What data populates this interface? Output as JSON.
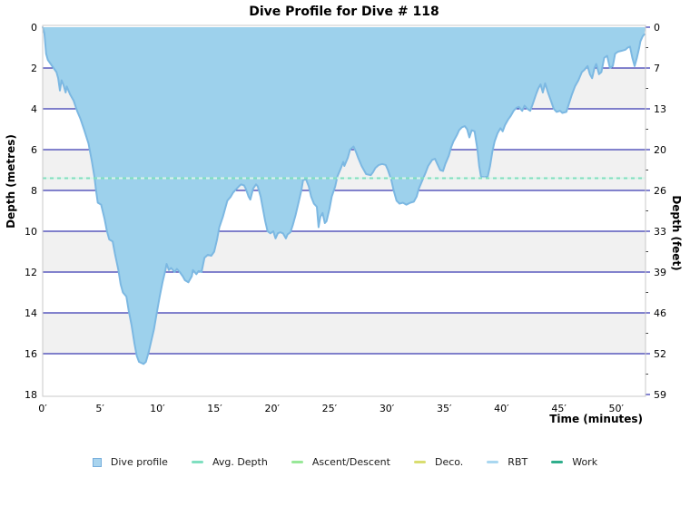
{
  "title": "Dive Profile for Dive # 118",
  "axes": {
    "x_label": "Time (minutes)",
    "y_left_label": "Depth (metres)",
    "y_right_label": "Depth (feet)",
    "x_ticks": [
      "0′",
      "5′",
      "10′",
      "15′",
      "20′",
      "25′",
      "30′",
      "35′",
      "40′",
      "45′",
      "50′"
    ],
    "x_tick_values": [
      0,
      5,
      10,
      15,
      20,
      25,
      30,
      35,
      40,
      45,
      50
    ],
    "y_left_ticks": [
      "0",
      "2",
      "4",
      "6",
      "8",
      "10",
      "12",
      "14",
      "16",
      "18"
    ],
    "y_left_values": [
      0,
      2,
      4,
      6,
      8,
      10,
      12,
      14,
      16,
      18
    ],
    "y_right_ticks": [
      "0",
      "7",
      "13",
      "20",
      "26",
      "33",
      "39",
      "46",
      "52",
      "59"
    ]
  },
  "colors": {
    "profile_fill": "#9DD1EC",
    "profile_stroke": "#7CB8E2",
    "grid_major": "#0909A0",
    "minor_tick": "#444444",
    "band_alt": "#F1F1F1",
    "band_main": "#FFFFFF",
    "plot_border": "#C9C9C9",
    "avg_line_bright": "#7EE0BE",
    "avg_line_pale": "#D8F5E9",
    "text": "#000000"
  },
  "legend": {
    "position": "bottom",
    "items": [
      {
        "label": "Dive profile",
        "marker": "square",
        "color": "#A9D4EE",
        "border_color": "#77AEDC"
      },
      {
        "label": "Avg. Depth",
        "marker": "line",
        "color": "#7FDFC0"
      },
      {
        "label": "Ascent/Descent",
        "marker": "line",
        "color": "#98E898"
      },
      {
        "label": "Deco.",
        "marker": "line",
        "color": "#D9DD70"
      },
      {
        "label": "RBT",
        "marker": "line",
        "color": "#A9D7F0"
      },
      {
        "label": "Work",
        "marker": "line",
        "color": "#2FAE8C"
      }
    ]
  },
  "chart_data": {
    "type": "area",
    "title": "Dive Profile for Dive # 118",
    "xlabel": "Time (minutes)",
    "ylabel_left": "Depth (metres)",
    "ylabel_right": "Depth (feet)",
    "xlim": [
      0,
      52.55
    ],
    "ylim_metres": [
      0,
      18
    ],
    "ylim_feet": [
      0,
      59
    ],
    "y_inverted": true,
    "grid": true,
    "legend_position": "bottom",
    "avg_depth_m": 7.4,
    "max_depth_m": 16.5,
    "duration_min": 52.5,
    "series": [
      {
        "name": "Dive profile",
        "points": [
          [
            0,
            0
          ],
          [
            0.15,
            0.3
          ],
          [
            0.3,
            1.3
          ],
          [
            0.45,
            1.6
          ],
          [
            0.7,
            1.8
          ],
          [
            0.95,
            2.0
          ],
          [
            1.2,
            2.2
          ],
          [
            1.35,
            2.5
          ],
          [
            1.5,
            3.1
          ],
          [
            1.65,
            2.6
          ],
          [
            1.8,
            2.8
          ],
          [
            2.0,
            3.2
          ],
          [
            2.1,
            2.9
          ],
          [
            2.4,
            3.3
          ],
          [
            2.7,
            3.6
          ],
          [
            3.0,
            4.1
          ],
          [
            3.3,
            4.5
          ],
          [
            3.6,
            5.0
          ],
          [
            4.0,
            5.7
          ],
          [
            4.3,
            6.6
          ],
          [
            4.5,
            7.3
          ],
          [
            4.65,
            8.0
          ],
          [
            4.8,
            8.6
          ],
          [
            5.1,
            8.7
          ],
          [
            5.4,
            9.4
          ],
          [
            5.6,
            10.0
          ],
          [
            5.8,
            10.4
          ],
          [
            6.1,
            10.5
          ],
          [
            6.3,
            11.1
          ],
          [
            6.6,
            11.9
          ],
          [
            6.8,
            12.6
          ],
          [
            7.0,
            13.0
          ],
          [
            7.3,
            13.2
          ],
          [
            7.5,
            13.9
          ],
          [
            7.75,
            14.6
          ],
          [
            8.0,
            15.5
          ],
          [
            8.2,
            16.1
          ],
          [
            8.4,
            16.4
          ],
          [
            8.8,
            16.5
          ],
          [
            9.0,
            16.4
          ],
          [
            9.25,
            15.9
          ],
          [
            9.5,
            15.3
          ],
          [
            9.7,
            14.8
          ],
          [
            9.95,
            14.0
          ],
          [
            10.2,
            13.2
          ],
          [
            10.45,
            12.5
          ],
          [
            10.7,
            11.9
          ],
          [
            10.8,
            11.6
          ],
          [
            11.0,
            11.9
          ],
          [
            11.2,
            11.8
          ],
          [
            11.5,
            12.0
          ],
          [
            11.7,
            11.85
          ],
          [
            11.95,
            12.0
          ],
          [
            12.2,
            12.2
          ],
          [
            12.4,
            12.4
          ],
          [
            12.7,
            12.5
          ],
          [
            13.0,
            12.2
          ],
          [
            13.1,
            11.9
          ],
          [
            13.4,
            12.1
          ],
          [
            13.6,
            11.95
          ],
          [
            13.85,
            12.0
          ],
          [
            14.1,
            11.3
          ],
          [
            14.4,
            11.15
          ],
          [
            14.7,
            11.2
          ],
          [
            14.95,
            11.0
          ],
          [
            15.2,
            10.4
          ],
          [
            15.4,
            9.8
          ],
          [
            15.7,
            9.3
          ],
          [
            15.9,
            8.9
          ],
          [
            16.1,
            8.5
          ],
          [
            16.4,
            8.3
          ],
          [
            16.6,
            8.1
          ],
          [
            16.85,
            7.95
          ],
          [
            17.1,
            7.8
          ],
          [
            17.3,
            7.7
          ],
          [
            17.55,
            7.75
          ],
          [
            17.7,
            7.9
          ],
          [
            17.95,
            8.3
          ],
          [
            18.1,
            8.45
          ],
          [
            18.35,
            7.9
          ],
          [
            18.6,
            7.7
          ],
          [
            18.75,
            7.8
          ],
          [
            19.0,
            8.3
          ],
          [
            19.2,
            8.9
          ],
          [
            19.4,
            9.5
          ],
          [
            19.6,
            10.0
          ],
          [
            19.85,
            10.1
          ],
          [
            20.1,
            10.0
          ],
          [
            20.3,
            10.35
          ],
          [
            20.5,
            10.1
          ],
          [
            20.7,
            10.05
          ],
          [
            20.95,
            10.1
          ],
          [
            21.2,
            10.35
          ],
          [
            21.35,
            10.15
          ],
          [
            21.6,
            10.05
          ],
          [
            21.8,
            9.7
          ],
          [
            22.05,
            9.2
          ],
          [
            22.3,
            8.6
          ],
          [
            22.55,
            8.0
          ],
          [
            22.7,
            7.5
          ],
          [
            22.95,
            7.45
          ],
          [
            23.2,
            7.8
          ],
          [
            23.4,
            8.3
          ],
          [
            23.65,
            8.65
          ],
          [
            23.9,
            8.8
          ],
          [
            24.05,
            9.8
          ],
          [
            24.2,
            9.3
          ],
          [
            24.4,
            9.1
          ],
          [
            24.6,
            9.6
          ],
          [
            24.75,
            9.5
          ],
          [
            25.0,
            8.9
          ],
          [
            25.2,
            8.3
          ],
          [
            25.5,
            7.8
          ],
          [
            25.7,
            7.3
          ],
          [
            26.0,
            6.9
          ],
          [
            26.2,
            6.6
          ],
          [
            26.3,
            6.8
          ],
          [
            26.6,
            6.4
          ],
          [
            26.8,
            6.0
          ],
          [
            27.1,
            5.85
          ],
          [
            27.3,
            6.1
          ],
          [
            27.5,
            6.4
          ],
          [
            27.8,
            6.8
          ],
          [
            28.0,
            7.0
          ],
          [
            28.2,
            7.2
          ],
          [
            28.6,
            7.25
          ],
          [
            28.8,
            7.1
          ],
          [
            29.0,
            6.9
          ],
          [
            29.3,
            6.75
          ],
          [
            29.6,
            6.7
          ],
          [
            29.9,
            6.75
          ],
          [
            30.1,
            7.0
          ],
          [
            30.4,
            7.5
          ],
          [
            30.6,
            8.0
          ],
          [
            30.85,
            8.5
          ],
          [
            31.1,
            8.65
          ],
          [
            31.4,
            8.6
          ],
          [
            31.7,
            8.7
          ],
          [
            32.05,
            8.6
          ],
          [
            32.35,
            8.55
          ],
          [
            32.6,
            8.3
          ],
          [
            32.8,
            7.9
          ],
          [
            33.1,
            7.5
          ],
          [
            33.4,
            7.1
          ],
          [
            33.6,
            6.8
          ],
          [
            33.95,
            6.5
          ],
          [
            34.2,
            6.45
          ],
          [
            34.4,
            6.7
          ],
          [
            34.65,
            7.0
          ],
          [
            34.9,
            7.05
          ],
          [
            35.1,
            6.7
          ],
          [
            35.4,
            6.3
          ],
          [
            35.6,
            5.9
          ],
          [
            35.8,
            5.6
          ],
          [
            36.1,
            5.3
          ],
          [
            36.3,
            5.05
          ],
          [
            36.55,
            4.9
          ],
          [
            36.8,
            4.85
          ],
          [
            37.0,
            5.0
          ],
          [
            37.2,
            5.4
          ],
          [
            37.4,
            5.05
          ],
          [
            37.65,
            5.1
          ],
          [
            37.9,
            6.0
          ],
          [
            38.05,
            6.8
          ],
          [
            38.2,
            7.3
          ],
          [
            38.5,
            7.35
          ],
          [
            38.8,
            7.3
          ],
          [
            39.0,
            6.8
          ],
          [
            39.2,
            6.1
          ],
          [
            39.4,
            5.6
          ],
          [
            39.65,
            5.2
          ],
          [
            39.9,
            4.95
          ],
          [
            40.1,
            5.1
          ],
          [
            40.3,
            4.8
          ],
          [
            40.6,
            4.5
          ],
          [
            40.8,
            4.35
          ],
          [
            41.05,
            4.1
          ],
          [
            41.3,
            3.95
          ],
          [
            41.5,
            3.9
          ],
          [
            41.8,
            4.1
          ],
          [
            42.0,
            3.85
          ],
          [
            42.25,
            4.0
          ],
          [
            42.5,
            4.1
          ],
          [
            42.7,
            3.8
          ],
          [
            43.0,
            3.3
          ],
          [
            43.2,
            3.0
          ],
          [
            43.4,
            2.8
          ],
          [
            43.6,
            3.2
          ],
          [
            43.8,
            2.75
          ],
          [
            44.05,
            3.2
          ],
          [
            44.3,
            3.6
          ],
          [
            44.55,
            4.0
          ],
          [
            44.8,
            4.15
          ],
          [
            45.1,
            4.1
          ],
          [
            45.3,
            4.2
          ],
          [
            45.65,
            4.15
          ],
          [
            45.9,
            3.7
          ],
          [
            46.1,
            3.35
          ],
          [
            46.4,
            2.9
          ],
          [
            46.7,
            2.6
          ],
          [
            47.0,
            2.2
          ],
          [
            47.2,
            2.1
          ],
          [
            47.5,
            1.9
          ],
          [
            47.7,
            2.3
          ],
          [
            47.9,
            2.5
          ],
          [
            48.1,
            2.0
          ],
          [
            48.25,
            1.8
          ],
          [
            48.5,
            2.3
          ],
          [
            48.7,
            2.2
          ],
          [
            48.95,
            1.5
          ],
          [
            49.2,
            1.4
          ],
          [
            49.45,
            2.0
          ],
          [
            49.7,
            1.9
          ],
          [
            49.9,
            1.3
          ],
          [
            50.15,
            1.2
          ],
          [
            50.5,
            1.15
          ],
          [
            50.8,
            1.1
          ],
          [
            51.0,
            1.0
          ],
          [
            51.2,
            0.95
          ],
          [
            51.4,
            1.5
          ],
          [
            51.6,
            1.9
          ],
          [
            51.8,
            1.5
          ],
          [
            52.0,
            1.0
          ],
          [
            52.1,
            0.7
          ],
          [
            52.3,
            0.45
          ],
          [
            52.45,
            0.35
          ]
        ]
      }
    ]
  }
}
